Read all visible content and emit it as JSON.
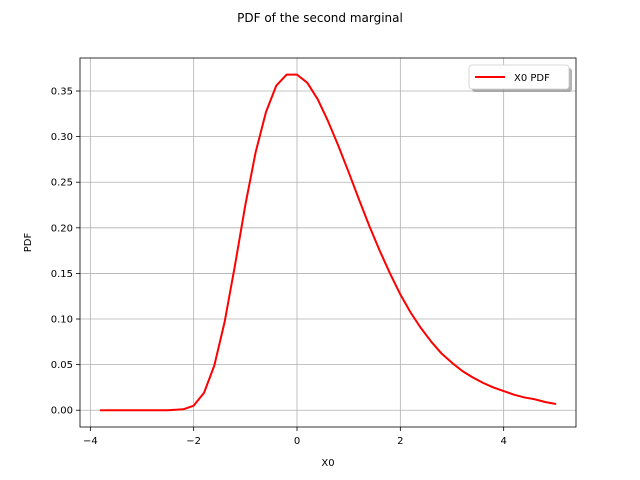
{
  "chart_data": {
    "type": "line",
    "title": "PDF of the second marginal",
    "xlabel": "X0",
    "ylabel": "PDF",
    "xlim": [
      -4.2,
      5.4
    ],
    "ylim": [
      -0.0184,
      0.3862
    ],
    "x_ticks": [
      -4,
      -2,
      0,
      2,
      4
    ],
    "x_tick_labels": [
      "−4",
      "−2",
      "0",
      "2",
      "4"
    ],
    "y_ticks": [
      0.0,
      0.05,
      0.1,
      0.15,
      0.2,
      0.25,
      0.3,
      0.35
    ],
    "y_tick_labels": [
      "0.00",
      "0.05",
      "0.10",
      "0.15",
      "0.20",
      "0.25",
      "0.30",
      "0.35"
    ],
    "grid": true,
    "legend": {
      "position": "top-right",
      "entries": [
        "X0 PDF"
      ]
    },
    "series": [
      {
        "name": "X0 PDF",
        "color": "#ff0000",
        "x": [
          -3.8,
          -3.5,
          -3.0,
          -2.5,
          -2.2,
          -2.0,
          -1.8,
          -1.6,
          -1.4,
          -1.2,
          -1.0,
          -0.8,
          -0.6,
          -0.4,
          -0.2,
          0.0,
          0.2,
          0.4,
          0.6,
          0.8,
          1.0,
          1.2,
          1.4,
          1.6,
          1.8,
          2.0,
          2.2,
          2.4,
          2.6,
          2.8,
          3.0,
          3.2,
          3.4,
          3.6,
          3.8,
          4.0,
          4.2,
          4.4,
          4.6,
          4.8,
          5.0
        ],
        "y": [
          0.0,
          0.0,
          0.0,
          0.0,
          0.001,
          0.005,
          0.019,
          0.049,
          0.097,
          0.159,
          0.225,
          0.283,
          0.327,
          0.356,
          0.368,
          0.368,
          0.359,
          0.341,
          0.317,
          0.29,
          0.261,
          0.231,
          0.202,
          0.175,
          0.15,
          0.127,
          0.107,
          0.09,
          0.075,
          0.062,
          0.052,
          0.043,
          0.036,
          0.03,
          0.025,
          0.021,
          0.017,
          0.014,
          0.012,
          0.009,
          0.007
        ]
      }
    ]
  }
}
